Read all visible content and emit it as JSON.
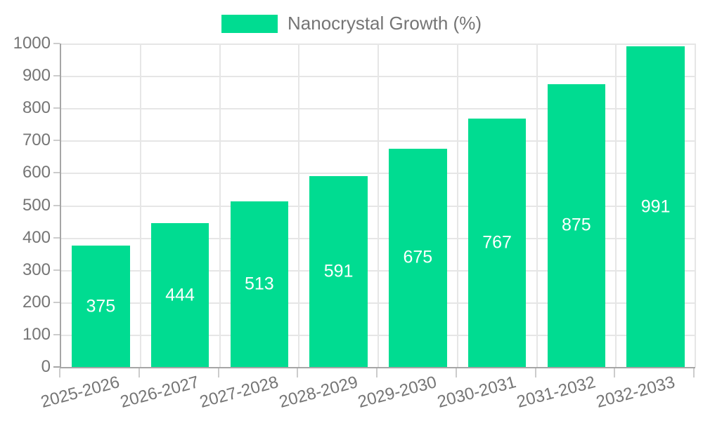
{
  "chart_data": {
    "type": "bar",
    "title": "",
    "categories": [
      "2025-2026",
      "2026-2027",
      "2027-2028",
      "2028-2029",
      "2029-2030",
      "2030-2031",
      "2031-2032",
      "2032-2033"
    ],
    "series": [
      {
        "name": "Nanocrystal Growth (%)",
        "values": [
          375,
          444,
          513,
          591,
          675,
          767,
          875,
          991
        ]
      }
    ],
    "xlabel": "",
    "ylabel": "",
    "ylim": [
      0,
      1000
    ],
    "ytick_step": 100,
    "yticks": [
      0,
      100,
      200,
      300,
      400,
      500,
      600,
      700,
      800,
      900,
      1000
    ],
    "grid": true,
    "legend_position": "top-center",
    "value_label_position": "inside-center",
    "x_label_rotation_deg": -15
  },
  "colors": {
    "bar": "#00DC91",
    "grid": "#E6E6E6",
    "axis": "#A6A6A6",
    "tick": "#CCCCCC",
    "axis_text": "#757575",
    "value_text": "#FFFFFF",
    "background": "#FFFFFF"
  }
}
